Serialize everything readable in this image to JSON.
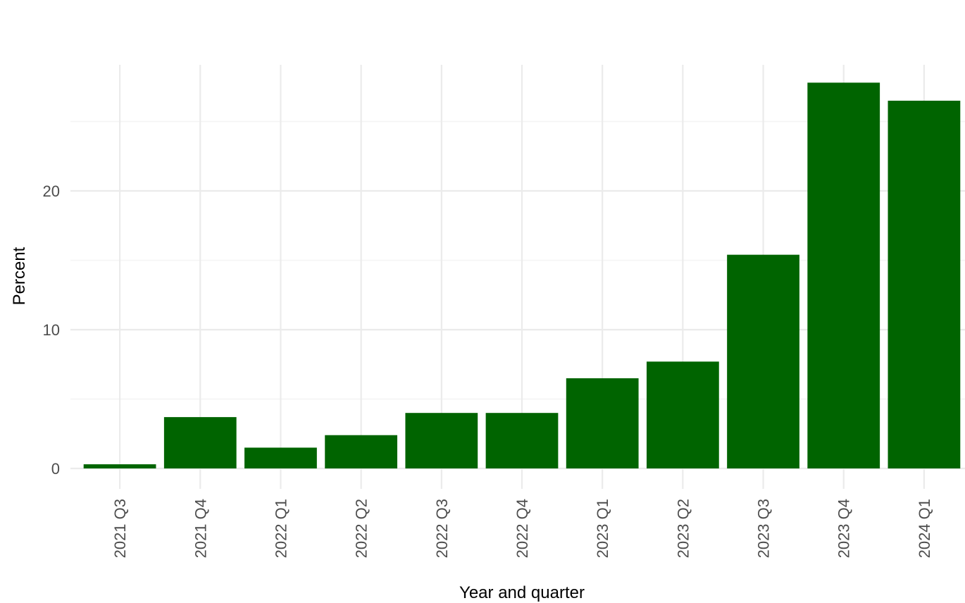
{
  "chart_data": {
    "type": "bar",
    "title": "",
    "xlabel": "Year and quarter",
    "ylabel": "Percent",
    "categories": [
      "2021 Q3",
      "2021 Q4",
      "2022 Q1",
      "2022 Q2",
      "2022 Q3",
      "2022 Q4",
      "2023 Q1",
      "2023 Q2",
      "2023 Q3",
      "2023 Q4",
      "2024 Q1"
    ],
    "values": [
      0.3,
      3.7,
      1.5,
      2.4,
      4.0,
      4.0,
      6.5,
      7.7,
      15.4,
      27.8,
      26.5
    ],
    "ylim": [
      -1.4,
      29.1
    ],
    "yticks": [
      0,
      10,
      20
    ],
    "ytick_labels": [
      "0",
      "10",
      "20"
    ],
    "grid": true,
    "legend": "none",
    "bar_color": "#006400",
    "background_color": "#ffffff"
  }
}
